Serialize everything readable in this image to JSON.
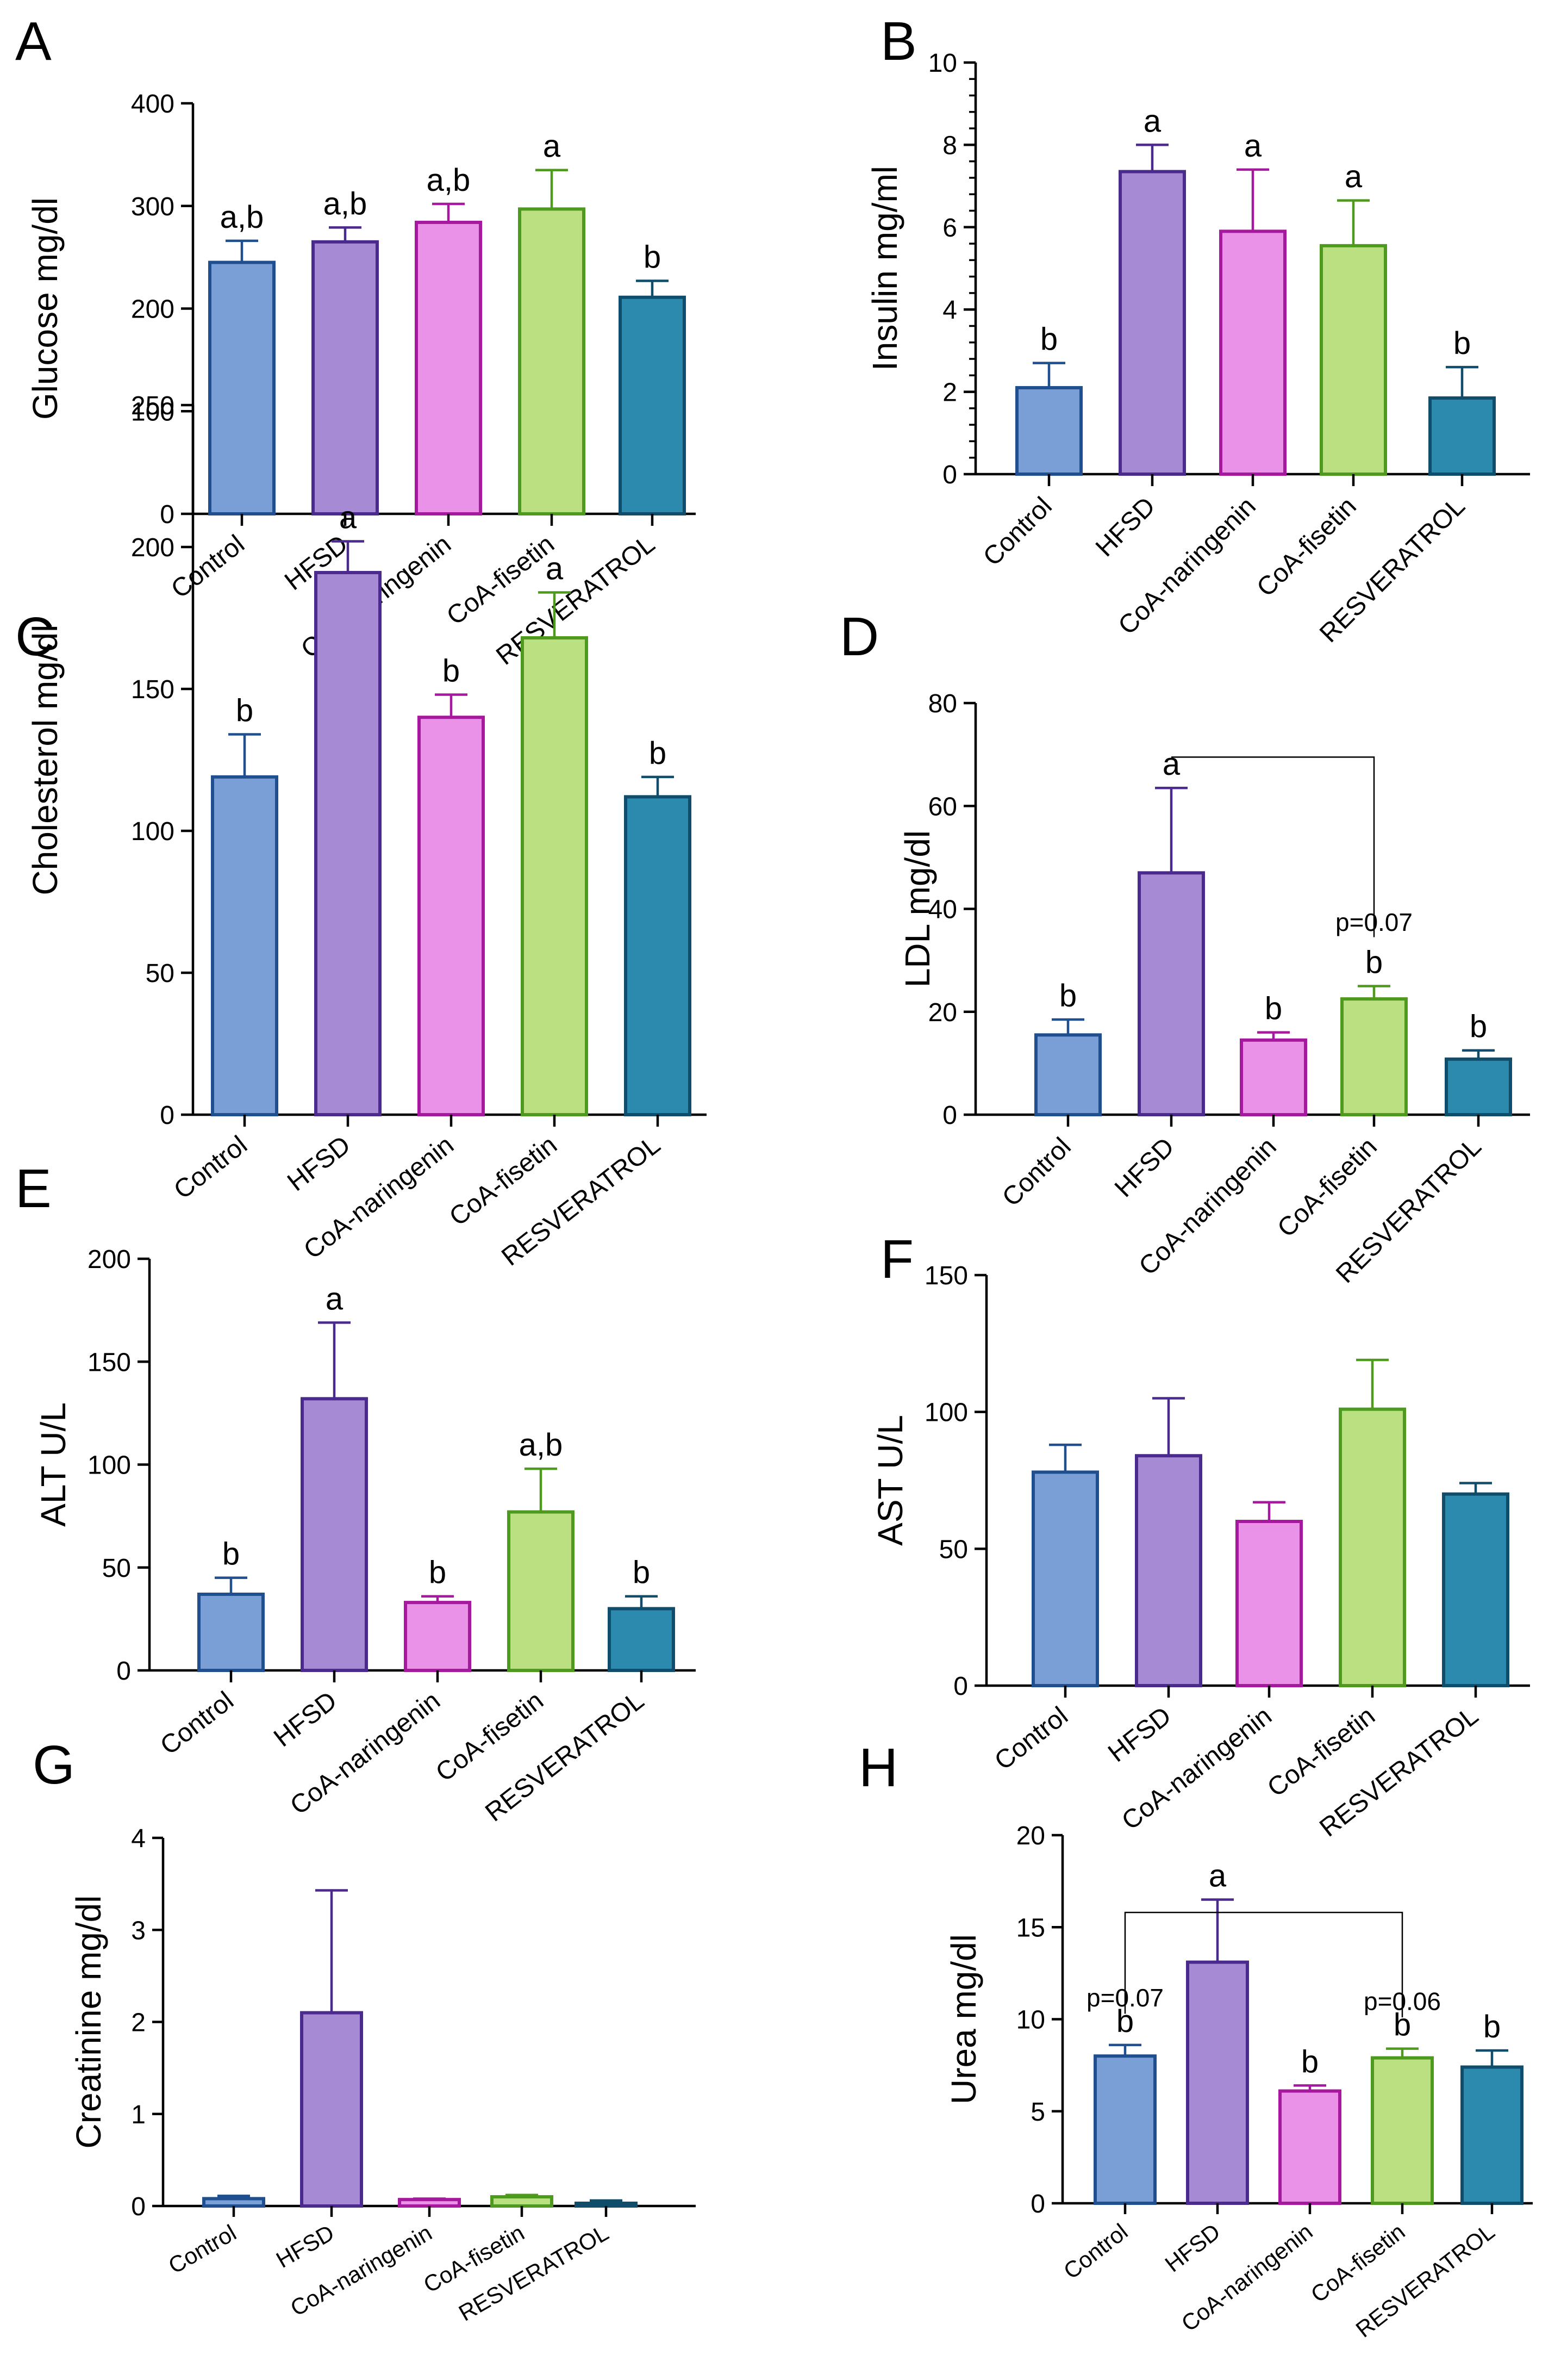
{
  "figure": {
    "categories": [
      "Control",
      "HFSD",
      "CoA-naringenin",
      "CoA-fisetin",
      "RESVERATROL"
    ],
    "series_colors": {
      "fill": [
        "#7a9fd6",
        "#a68bd4",
        "#ea92e8",
        "#bbe081",
        "#2b8aae"
      ],
      "stroke": [
        "#1f4f8f",
        "#4a2a8c",
        "#a6189e",
        "#4e9a1e",
        "#0f4d6b"
      ]
    }
  },
  "chart_data": [
    {
      "panel": "A",
      "type": "bar",
      "title": "",
      "categories": [
        "Control",
        "HFSD",
        "CoA-naringenin",
        "CoA-fisetin",
        "RESVERATROL"
      ],
      "values": [
        245,
        265,
        284,
        297,
        211
      ],
      "errors": [
        21,
        14,
        18,
        38,
        16
      ],
      "labels": [
        "a,b",
        "a,b",
        "a,b",
        "a",
        "b"
      ],
      "ylabel": "Glucose mg/dl",
      "ylim": [
        0,
        400
      ],
      "yticks": [
        "0",
        "100",
        "200",
        "300",
        "400"
      ],
      "minor_ticks": false,
      "brackets": []
    },
    {
      "panel": "B",
      "type": "bar",
      "title": "",
      "categories": [
        "Control",
        "HFSD",
        "CoA-naringenin",
        "CoA-fisetin",
        "RESVERATROL"
      ],
      "values": [
        2.1,
        7.35,
        5.9,
        5.55,
        1.85
      ],
      "errors": [
        0.6,
        0.65,
        1.5,
        1.1,
        0.75
      ],
      "labels": [
        "b",
        "a",
        "a",
        "a",
        "b"
      ],
      "ylabel": "Insulin mg/ml",
      "ylim": [
        0,
        10
      ],
      "yticks": [
        "0",
        "2",
        "4",
        "6",
        "8",
        "10"
      ],
      "minor_ticks": true,
      "brackets": []
    },
    {
      "panel": "C",
      "type": "bar",
      "title": "",
      "categories": [
        "Control",
        "HFSD",
        "CoA-naringenin",
        "CoA-fisetin",
        "RESVERATROL"
      ],
      "values": [
        119,
        191,
        140,
        168,
        112
      ],
      "errors": [
        15,
        11,
        8,
        16,
        7
      ],
      "labels": [
        "b",
        "a",
        "b",
        "a",
        "b"
      ],
      "ylabel": "Cholesterol mg/dl",
      "ylim": [
        0,
        250
      ],
      "yticks": [
        "0",
        "50",
        "100",
        "150",
        "200",
        "250"
      ],
      "minor_ticks": false,
      "brackets": []
    },
    {
      "panel": "D",
      "type": "bar",
      "title": "",
      "categories": [
        "Control",
        "HFSD",
        "CoA-naringenin",
        "CoA-fisetin",
        "RESVERATROL"
      ],
      "values": [
        15.5,
        47,
        14.5,
        22.5,
        10.8
      ],
      "errors": [
        3,
        16.5,
        1.5,
        2.5,
        1.7
      ],
      "labels": [
        "b",
        "a",
        "b",
        "b",
        "b"
      ],
      "ylabel": "LDL mg/dl",
      "ylim": [
        0,
        80
      ],
      "yticks": [
        "0",
        "20",
        "40",
        "60",
        "80"
      ],
      "minor_ticks": false,
      "brackets": [
        {
          "from": 1,
          "to": 3,
          "y": 69.5,
          "drop_to": 34.5,
          "drop_left_to": null,
          "label": "p=0.07",
          "label_y": 35.7
        }
      ]
    },
    {
      "panel": "E",
      "type": "bar",
      "title": "",
      "categories": [
        "Control",
        "HFSD",
        "CoA-naringenin",
        "CoA-fisetin",
        "RESVERATROL"
      ],
      "values": [
        37,
        132,
        33,
        77,
        30
      ],
      "errors": [
        8,
        37,
        3,
        21,
        6
      ],
      "labels": [
        "b",
        "a",
        "b",
        "a,b",
        "b"
      ],
      "ylabel": "ALT U/L",
      "ylim": [
        0,
        200
      ],
      "yticks": [
        "0",
        "50",
        "100",
        "150",
        "200"
      ],
      "minor_ticks": false,
      "brackets": []
    },
    {
      "panel": "F",
      "type": "bar",
      "title": "",
      "categories": [
        "Control",
        "HFSD",
        "CoA-naringenin",
        "CoA-fisetin",
        "RESVERATROL"
      ],
      "values": [
        78,
        84,
        60,
        101,
        70
      ],
      "errors": [
        10,
        21,
        7,
        18,
        4
      ],
      "labels": [],
      "ylabel": "AST U/L",
      "ylim": [
        0,
        150
      ],
      "yticks": [
        "0",
        "50",
        "100",
        "150"
      ],
      "minor_ticks": false,
      "brackets": []
    },
    {
      "panel": "G",
      "type": "bar",
      "title": "",
      "categories": [
        "Control",
        "HFSD",
        "CoA-naringenin",
        "CoA-fisetin",
        "RESVERATROL"
      ],
      "values": [
        0.08,
        2.1,
        0.07,
        0.1,
        0.03
      ],
      "errors": [
        0.03,
        1.33,
        0.01,
        0.02,
        0.03
      ],
      "labels": [],
      "ylabel": "Creatinine mg/dl",
      "ylim": [
        0,
        4
      ],
      "yticks": [
        "0",
        "1",
        "2",
        "3",
        "4"
      ],
      "minor_ticks": false,
      "brackets": []
    },
    {
      "panel": "H",
      "type": "bar",
      "title": "",
      "categories": [
        "Control",
        "HFSD",
        "CoA-naringenin",
        "CoA-fisetin",
        "RESVERATROL"
      ],
      "values": [
        8,
        13.1,
        6.1,
        7.9,
        7.4
      ],
      "errors": [
        0.6,
        3.4,
        0.3,
        0.5,
        0.9
      ],
      "labels": [
        "b",
        "a",
        "b",
        "b",
        "b"
      ],
      "ylabel": "Urea mg/dl",
      "ylim": [
        0,
        20
      ],
      "yticks": [
        "0",
        "5",
        "10",
        "15",
        "20"
      ],
      "minor_ticks": false,
      "brackets": [
        {
          "from": 0,
          "to": 3,
          "y": 15.8,
          "drop_to": 10.1,
          "drop_left_to": 10.3,
          "label": "p=0.06",
          "label_y": 10.5,
          "left_label": "p=0.07",
          "left_label_y": 10.7
        }
      ]
    }
  ]
}
